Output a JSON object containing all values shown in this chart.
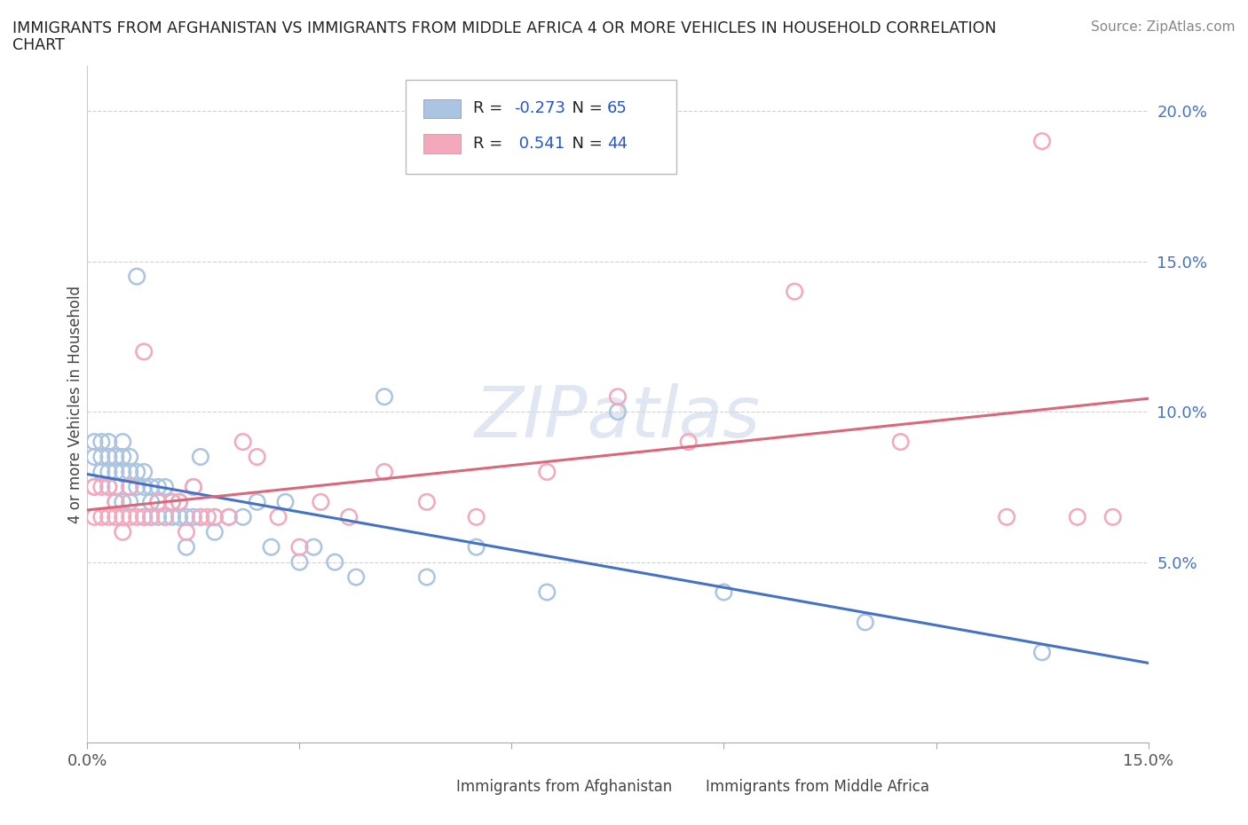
{
  "title_line1": "IMMIGRANTS FROM AFGHANISTAN VS IMMIGRANTS FROM MIDDLE AFRICA 4 OR MORE VEHICLES IN HOUSEHOLD CORRELATION",
  "title_line2": "CHART",
  "source_text": "Source: ZipAtlas.com",
  "ylabel": "4 or more Vehicles in Household",
  "xlim": [
    0.0,
    0.15
  ],
  "ylim": [
    -0.01,
    0.215
  ],
  "ytick_positions": [
    0.05,
    0.1,
    0.15,
    0.2
  ],
  "ytick_labels": [
    "5.0%",
    "10.0%",
    "15.0%",
    "20.0%"
  ],
  "afghanistan_R": -0.273,
  "afghanistan_N": 65,
  "middle_africa_R": 0.541,
  "middle_africa_N": 44,
  "afghanistan_color": "#aac4e2",
  "afghanistan_line_color": "#4472c4",
  "middle_africa_color": "#f5a8bc",
  "middle_africa_line_color": "#d9687a",
  "watermark": "ZIPatlas",
  "legend_label_1": "Immigrants from Afghanistan",
  "legend_label_2": "Immigrants from Middle Africa",
  "afghanistan_x": [
    0.001,
    0.001,
    0.001,
    0.002,
    0.002,
    0.002,
    0.003,
    0.003,
    0.003,
    0.003,
    0.004,
    0.004,
    0.004,
    0.004,
    0.005,
    0.005,
    0.005,
    0.005,
    0.006,
    0.006,
    0.006,
    0.006,
    0.007,
    0.007,
    0.007,
    0.008,
    0.008,
    0.008,
    0.009,
    0.009,
    0.009,
    0.01,
    0.01,
    0.01,
    0.011,
    0.011,
    0.012,
    0.012,
    0.013,
    0.013,
    0.014,
    0.014,
    0.015,
    0.015,
    0.016,
    0.016,
    0.018,
    0.018,
    0.02,
    0.022,
    0.024,
    0.026,
    0.028,
    0.03,
    0.032,
    0.035,
    0.038,
    0.042,
    0.048,
    0.055,
    0.065,
    0.075,
    0.09,
    0.11,
    0.135
  ],
  "afghanistan_y": [
    0.09,
    0.085,
    0.075,
    0.09,
    0.085,
    0.08,
    0.09,
    0.085,
    0.08,
    0.075,
    0.085,
    0.08,
    0.075,
    0.07,
    0.09,
    0.085,
    0.08,
    0.07,
    0.085,
    0.08,
    0.075,
    0.07,
    0.145,
    0.08,
    0.075,
    0.08,
    0.075,
    0.065,
    0.075,
    0.07,
    0.065,
    0.075,
    0.07,
    0.065,
    0.075,
    0.065,
    0.07,
    0.065,
    0.065,
    0.07,
    0.065,
    0.055,
    0.065,
    0.075,
    0.085,
    0.065,
    0.065,
    0.06,
    0.065,
    0.065,
    0.07,
    0.055,
    0.07,
    0.05,
    0.055,
    0.05,
    0.045,
    0.105,
    0.045,
    0.055,
    0.04,
    0.1,
    0.04,
    0.03,
    0.02
  ],
  "middle_africa_x": [
    0.001,
    0.001,
    0.002,
    0.002,
    0.003,
    0.003,
    0.004,
    0.004,
    0.005,
    0.005,
    0.006,
    0.006,
    0.007,
    0.008,
    0.008,
    0.009,
    0.01,
    0.011,
    0.012,
    0.013,
    0.014,
    0.015,
    0.016,
    0.017,
    0.018,
    0.02,
    0.022,
    0.024,
    0.027,
    0.03,
    0.033,
    0.037,
    0.042,
    0.048,
    0.055,
    0.065,
    0.075,
    0.085,
    0.1,
    0.115,
    0.13,
    0.135,
    0.14,
    0.145
  ],
  "middle_africa_y": [
    0.075,
    0.065,
    0.075,
    0.065,
    0.075,
    0.065,
    0.07,
    0.065,
    0.065,
    0.06,
    0.075,
    0.065,
    0.065,
    0.12,
    0.065,
    0.065,
    0.07,
    0.065,
    0.07,
    0.07,
    0.06,
    0.075,
    0.065,
    0.065,
    0.065,
    0.065,
    0.09,
    0.085,
    0.065,
    0.055,
    0.07,
    0.065,
    0.08,
    0.07,
    0.065,
    0.08,
    0.105,
    0.09,
    0.14,
    0.09,
    0.065,
    0.19,
    0.065,
    0.065
  ]
}
